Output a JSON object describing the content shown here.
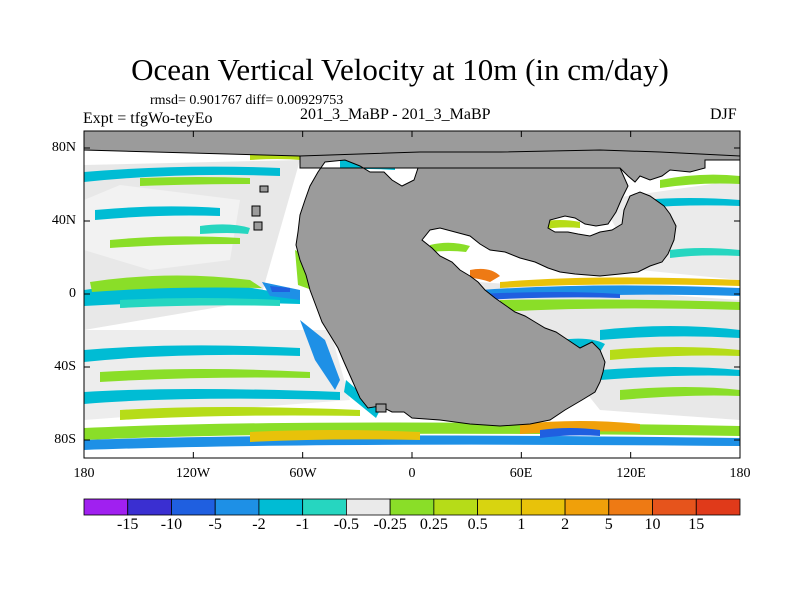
{
  "title": "Ocean Vertical Velocity at 10m (in cm/day)",
  "stats_line": "rmsd= 0.901767  diff= 0.00929753",
  "experiment_line": "Expt = tfgWo-teyEo",
  "subtitle": "201_3_MaBP - 201_3_MaBP",
  "season": "DJF",
  "colors": {
    "land": "#9b9b9b",
    "near_zero": "#e8e8e8",
    "map_border": "#000000"
  },
  "map": {
    "lat_labels": [
      "80N",
      "40N",
      "0",
      "40S",
      "80S"
    ],
    "lon_labels": [
      "180",
      "120W",
      "60W",
      "0",
      "60E",
      "120E",
      "180"
    ]
  },
  "colorbar": {
    "labels": [
      "-15",
      "-10",
      "-5",
      "-2",
      "-1",
      "-0.5",
      "-0.25",
      "0.25",
      "0.5",
      "1",
      "2",
      "5",
      "10",
      "15"
    ],
    "colors": [
      "#a020f0",
      "#3a2fd1",
      "#1f5fe0",
      "#1e90e6",
      "#00bcd4",
      "#26d6c0",
      "#eaeaea",
      "#8ade28",
      "#b6dc18",
      "#d8d410",
      "#e8c20a",
      "#f0a00a",
      "#ee7a14",
      "#e6541c",
      "#e03a1a"
    ]
  }
}
